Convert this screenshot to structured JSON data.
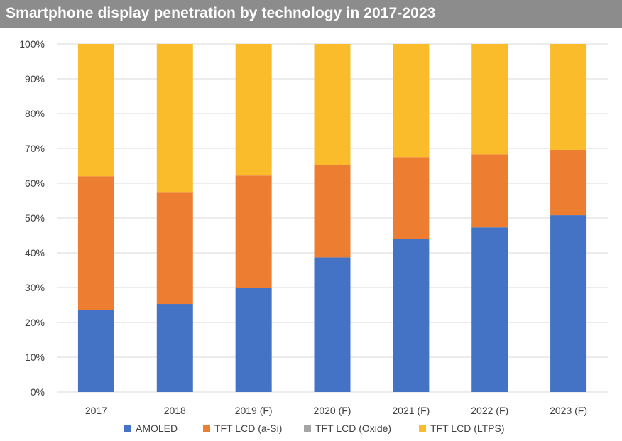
{
  "title": "Smartphone display penetration by technology in 2017-2023",
  "chart_data": {
    "type": "bar",
    "stacked": true,
    "title": "Smartphone display penetration by technology in 2017-2023",
    "categories": [
      "2017",
      "2018",
      "2019 (F)",
      "2020 (F)",
      "2021 (F)",
      "2022 (F)",
      "2023 (F)"
    ],
    "series": [
      {
        "name": "AMOLED",
        "color": "#4472c4",
        "values": [
          23.5,
          25.3,
          30.0,
          38.7,
          43.9,
          47.3,
          50.8
        ]
      },
      {
        "name": "TFT LCD (a-Si)",
        "color": "#ed7d31",
        "values": [
          38.5,
          32.0,
          32.2,
          26.6,
          23.6,
          21.0,
          18.8
        ]
      },
      {
        "name": "TFT LCD (Oxide)",
        "color": "#a5a5a5",
        "values": [
          0,
          0,
          0,
          0,
          0,
          0,
          0
        ]
      },
      {
        "name": "TFT LCD (LTPS)",
        "color": "#fbbc2c",
        "values": [
          38.0,
          42.7,
          37.8,
          34.7,
          32.5,
          31.7,
          30.4
        ]
      }
    ],
    "ylim": [
      0,
      100
    ],
    "yticks": [
      "0%",
      "10%",
      "20%",
      "30%",
      "40%",
      "50%",
      "60%",
      "70%",
      "80%",
      "90%",
      "100%"
    ],
    "ytick_values": [
      0,
      10,
      20,
      30,
      40,
      50,
      60,
      70,
      80,
      90,
      100
    ],
    "grid": true,
    "legend": "bottom"
  }
}
